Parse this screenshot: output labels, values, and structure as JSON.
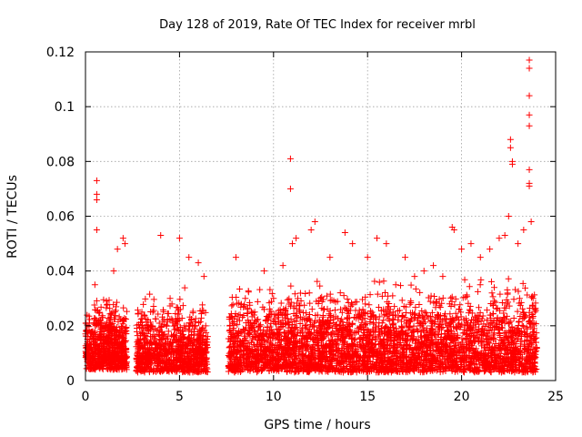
{
  "chart_data": {
    "type": "scatter",
    "title": "Day 128 of 2019, Rate Of TEC Index for receiver mrbl",
    "xlabel": "GPS time / hours",
    "ylabel": "ROTI / TECUs",
    "xlim": [
      0,
      25
    ],
    "ylim": [
      0,
      0.12
    ],
    "x_ticks": [
      0,
      5,
      10,
      15,
      20,
      25
    ],
    "x_tick_labels": [
      "0",
      "5",
      "10",
      "15",
      "20",
      "25"
    ],
    "y_ticks": [
      0,
      0.02,
      0.04,
      0.06,
      0.08,
      0.1,
      0.12
    ],
    "y_tick_labels": [
      "0",
      "0.02",
      "0.04",
      "0.06",
      "0.08",
      "0.1",
      "0.12"
    ],
    "grid": true,
    "marker": "+",
    "series": [
      {
        "name": "ROTI",
        "color": "#ff0000",
        "points": [
          [
            0.3,
            0.012
          ],
          [
            0.5,
            0.035
          ],
          [
            0.6,
            0.073
          ],
          [
            0.6,
            0.068
          ],
          [
            0.6,
            0.066
          ],
          [
            0.6,
            0.055
          ],
          [
            0.8,
            0.02
          ],
          [
            1.2,
            0.018
          ],
          [
            1.5,
            0.04
          ],
          [
            1.7,
            0.048
          ],
          [
            2.0,
            0.052
          ],
          [
            2.1,
            0.05
          ],
          [
            3.0,
            0.025
          ],
          [
            3.5,
            0.02
          ],
          [
            4.0,
            0.053
          ],
          [
            4.5,
            0.03
          ],
          [
            5.0,
            0.052
          ],
          [
            5.5,
            0.045
          ],
          [
            6.0,
            0.043
          ],
          [
            6.3,
            0.038
          ],
          [
            8.0,
            0.045
          ],
          [
            8.5,
            0.03
          ],
          [
            9.0,
            0.025
          ],
          [
            9.5,
            0.04
          ],
          [
            10.0,
            0.03
          ],
          [
            10.5,
            0.042
          ],
          [
            10.9,
            0.081
          ],
          [
            10.9,
            0.07
          ],
          [
            11.0,
            0.05
          ],
          [
            11.2,
            0.052
          ],
          [
            12.0,
            0.055
          ],
          [
            12.2,
            0.058
          ],
          [
            13.0,
            0.045
          ],
          [
            13.8,
            0.054
          ],
          [
            14.2,
            0.05
          ],
          [
            15.0,
            0.045
          ],
          [
            15.5,
            0.052
          ],
          [
            16.0,
            0.05
          ],
          [
            16.5,
            0.035
          ],
          [
            17.0,
            0.045
          ],
          [
            17.5,
            0.038
          ],
          [
            18.0,
            0.04
          ],
          [
            18.5,
            0.042
          ],
          [
            19.0,
            0.038
          ],
          [
            19.5,
            0.056
          ],
          [
            19.6,
            0.055
          ],
          [
            20.0,
            0.048
          ],
          [
            20.5,
            0.05
          ],
          [
            21.0,
            0.045
          ],
          [
            21.5,
            0.048
          ],
          [
            22.0,
            0.052
          ],
          [
            22.3,
            0.053
          ],
          [
            22.5,
            0.06
          ],
          [
            22.6,
            0.088
          ],
          [
            22.6,
            0.085
          ],
          [
            22.7,
            0.08
          ],
          [
            22.7,
            0.079
          ],
          [
            23.0,
            0.05
          ],
          [
            23.3,
            0.055
          ],
          [
            23.6,
            0.117
          ],
          [
            23.6,
            0.114
          ],
          [
            23.6,
            0.104
          ],
          [
            23.6,
            0.097
          ],
          [
            23.6,
            0.093
          ],
          [
            23.6,
            0.077
          ],
          [
            23.6,
            0.072
          ],
          [
            23.6,
            0.071
          ],
          [
            23.7,
            0.058
          ],
          [
            23.8,
            0.03
          ],
          [
            23.9,
            0.025
          ]
        ],
        "dense_segments": [
          {
            "x_range": [
              0.0,
              2.2
            ],
            "y_range": [
              0.004,
              0.035
            ],
            "count": 700
          },
          {
            "x_range": [
              2.7,
              6.5
            ],
            "y_range": [
              0.003,
              0.035
            ],
            "count": 900
          },
          {
            "x_range": [
              7.6,
              24.0
            ],
            "y_range": [
              0.003,
              0.04
            ],
            "count": 3600
          }
        ]
      }
    ]
  }
}
